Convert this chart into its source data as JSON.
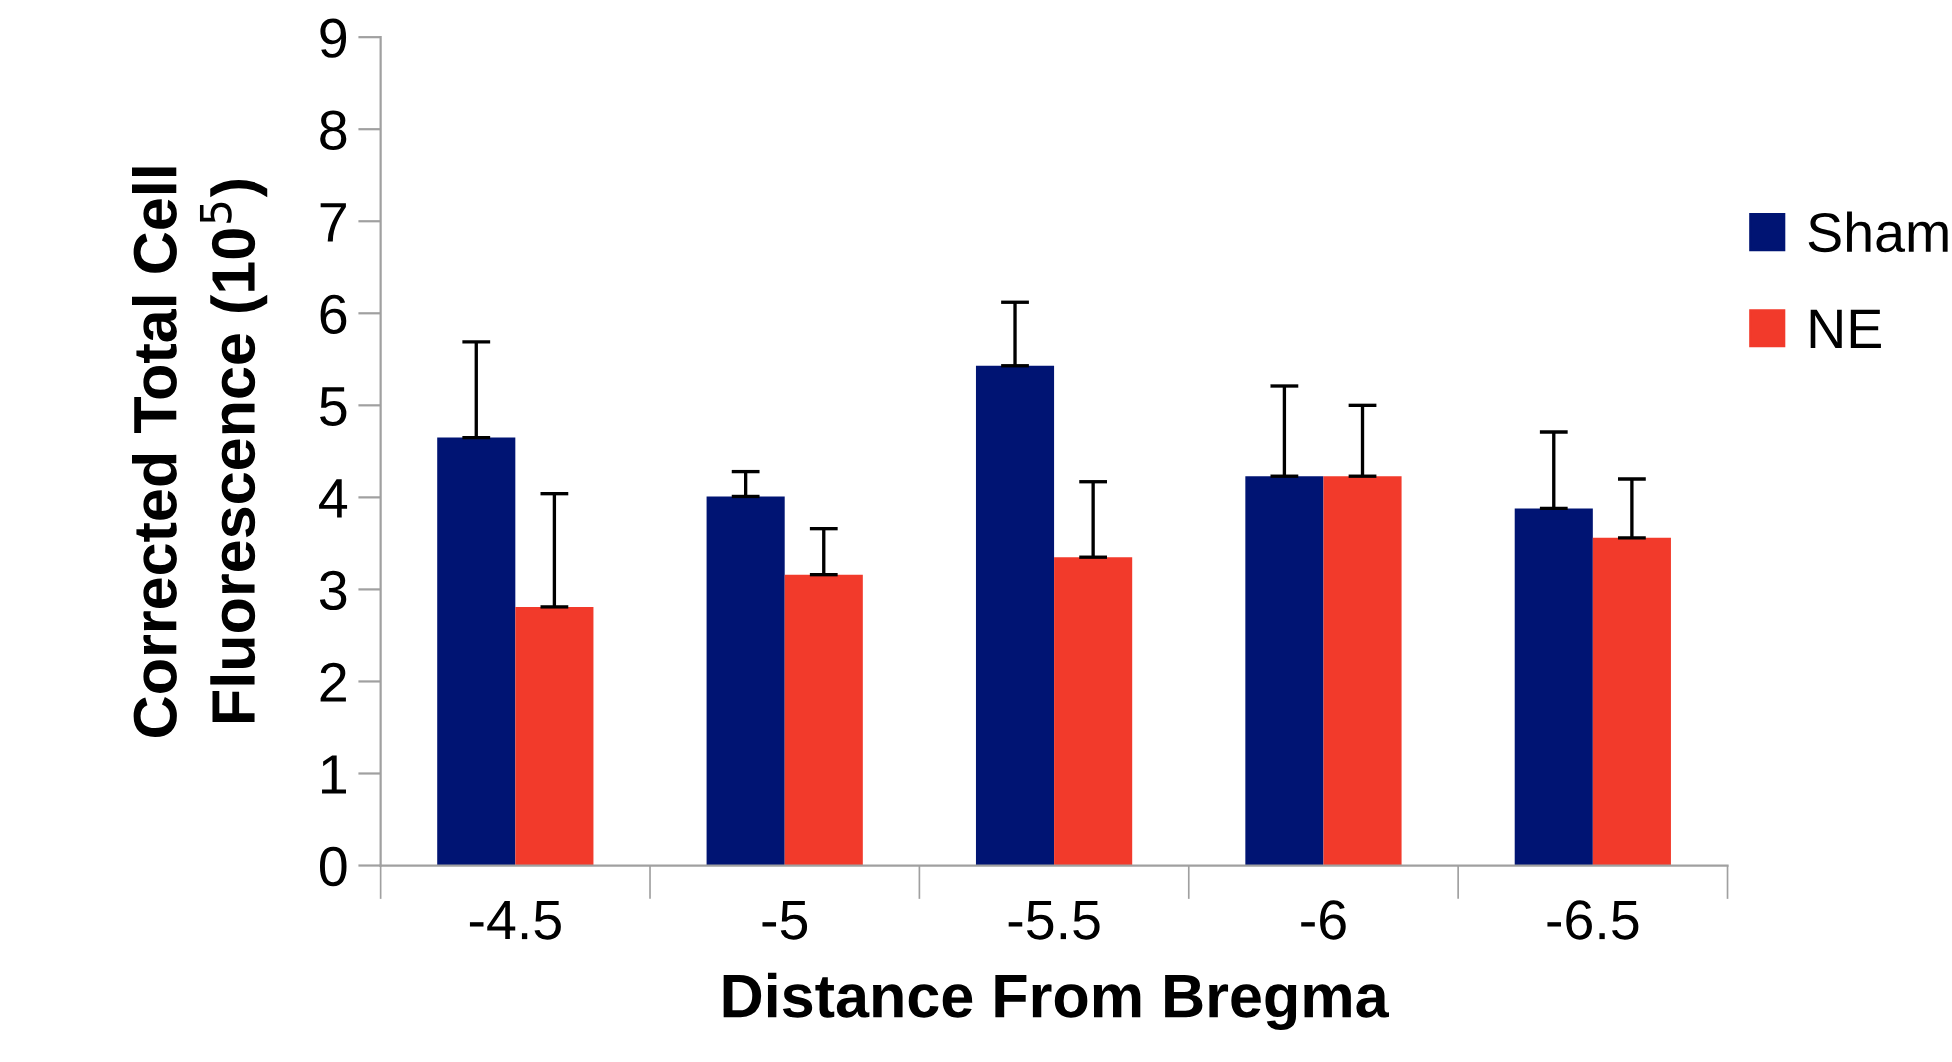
{
  "chart_data": {
    "type": "bar",
    "xlabel": "Distance From Bregma",
    "ylabel": "Corrected Total Cell\nFluorescence (10$^{5}$)",
    "categories": [
      "-4.5",
      "-5",
      "-5.5",
      "-6",
      "-6.5"
    ],
    "series": [
      {
        "name": "Sham",
        "color": "#001473",
        "values": [
          4.65,
          4.01,
          5.43,
          4.23,
          3.88
        ],
        "errors": [
          [
            4.65,
            5.69
          ],
          [
            4.01,
            4.28
          ],
          [
            5.43,
            6.12
          ],
          [
            4.23,
            5.21
          ],
          [
            3.88,
            4.71
          ]
        ]
      },
      {
        "name": "NE",
        "color": "#f23a2b",
        "values": [
          2.81,
          3.16,
          3.35,
          4.23,
          3.56
        ],
        "errors": [
          [
            2.81,
            4.04
          ],
          [
            3.16,
            3.66
          ],
          [
            3.35,
            4.17
          ],
          [
            4.23,
            5.0
          ],
          [
            3.56,
            4.2
          ]
        ]
      }
    ],
    "ylim": [
      0,
      9
    ],
    "yticks": [
      0,
      1,
      2,
      3,
      4,
      5,
      6,
      7,
      8,
      9
    ],
    "grid": false,
    "legend": "right"
  }
}
